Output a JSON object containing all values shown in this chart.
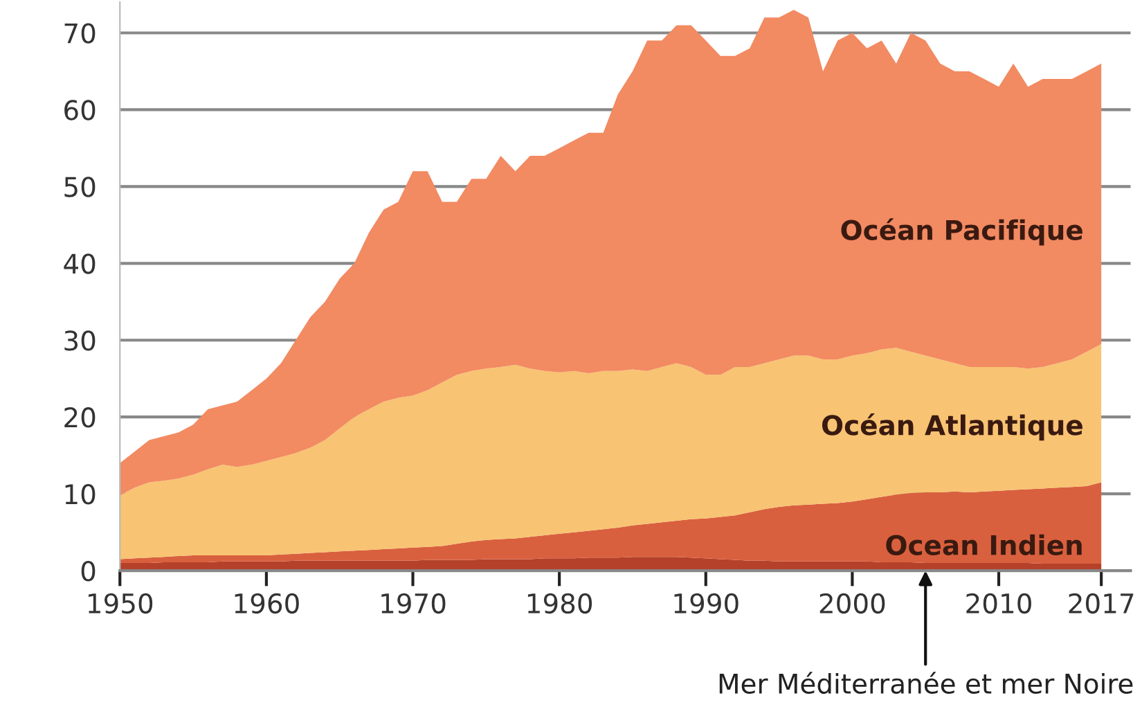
{
  "chart_data": {
    "type": "area",
    "stacked": true,
    "legend": false,
    "grid": "y",
    "x": [
      1950,
      1951,
      1952,
      1953,
      1954,
      1955,
      1956,
      1957,
      1958,
      1959,
      1960,
      1961,
      1962,
      1963,
      1964,
      1965,
      1966,
      1967,
      1968,
      1969,
      1970,
      1971,
      1972,
      1973,
      1974,
      1975,
      1976,
      1977,
      1978,
      1979,
      1980,
      1981,
      1982,
      1983,
      1984,
      1985,
      1986,
      1987,
      1988,
      1989,
      1990,
      1991,
      1992,
      1993,
      1994,
      1995,
      1996,
      1997,
      1998,
      1999,
      2000,
      2001,
      2002,
      2003,
      2004,
      2005,
      2006,
      2007,
      2008,
      2009,
      2010,
      2011,
      2012,
      2013,
      2014,
      2015,
      2016,
      2017
    ],
    "xlim": [
      1950,
      2019
    ],
    "xticks": [
      1950,
      1960,
      1970,
      1980,
      1990,
      2000,
      2010,
      2017
    ],
    "ylim": [
      0,
      74
    ],
    "yticks": [
      0,
      10,
      20,
      30,
      40,
      50,
      60,
      70
    ],
    "series": [
      {
        "name": "Mer Méditerranée et mer Noire",
        "color": "#b5412a",
        "values": [
          1.0,
          1.0,
          1.0,
          1.1,
          1.1,
          1.1,
          1.1,
          1.2,
          1.2,
          1.2,
          1.2,
          1.2,
          1.3,
          1.3,
          1.3,
          1.3,
          1.3,
          1.3,
          1.3,
          1.3,
          1.3,
          1.4,
          1.4,
          1.4,
          1.4,
          1.5,
          1.5,
          1.5,
          1.5,
          1.6,
          1.6,
          1.6,
          1.7,
          1.7,
          1.7,
          1.8,
          1.8,
          1.8,
          1.8,
          1.7,
          1.6,
          1.5,
          1.4,
          1.3,
          1.3,
          1.2,
          1.2,
          1.2,
          1.2,
          1.2,
          1.2,
          1.2,
          1.1,
          1.1,
          1.1,
          1.0,
          1.0,
          1.0,
          1.0,
          1.0,
          1.0,
          1.0,
          1.0,
          0.9,
          0.9,
          0.9,
          0.9,
          0.9
        ]
      },
      {
        "name": "Ocean Indien",
        "color": "#d9603e",
        "values": [
          0.5,
          0.6,
          0.7,
          0.7,
          0.8,
          0.9,
          0.9,
          0.8,
          0.8,
          0.8,
          0.8,
          0.9,
          0.9,
          1.0,
          1.1,
          1.2,
          1.3,
          1.4,
          1.5,
          1.6,
          1.7,
          1.7,
          1.8,
          2.1,
          2.4,
          2.5,
          2.6,
          2.7,
          2.9,
          3.0,
          3.2,
          3.4,
          3.5,
          3.7,
          3.9,
          4.1,
          4.3,
          4.5,
          4.7,
          5.0,
          5.2,
          5.5,
          5.8,
          6.3,
          6.7,
          7.1,
          7.3,
          7.4,
          7.5,
          7.6,
          7.8,
          8.1,
          8.5,
          8.8,
          9.0,
          9.2,
          9.2,
          9.3,
          9.2,
          9.3,
          9.4,
          9.5,
          9.6,
          9.8,
          9.9,
          10.0,
          10.1,
          10.6
        ]
      },
      {
        "name": "Océan Atlantique",
        "color": "#f8c373",
        "values": [
          8.3,
          9.2,
          9.8,
          9.9,
          10.1,
          10.5,
          11.2,
          11.8,
          11.5,
          11.8,
          12.3,
          12.7,
          13.1,
          13.7,
          14.6,
          16.0,
          17.4,
          18.3,
          19.2,
          19.6,
          19.8,
          20.4,
          21.3,
          22.0,
          22.2,
          22.3,
          22.4,
          22.6,
          21.9,
          21.4,
          21.0,
          21.0,
          20.5,
          20.6,
          20.4,
          20.3,
          19.9,
          20.2,
          20.5,
          19.8,
          18.7,
          18.5,
          19.3,
          18.9,
          19.0,
          19.2,
          19.5,
          19.4,
          18.8,
          18.7,
          19.0,
          19.0,
          19.2,
          19.1,
          18.4,
          17.8,
          17.3,
          16.7,
          16.3,
          16.2,
          16.1,
          16.0,
          15.7,
          15.8,
          16.2,
          16.6,
          17.5,
          18.0
        ]
      },
      {
        "name": "Océan Pacifique",
        "color": "#f28a62",
        "values": [
          4.2,
          4.7,
          5.5,
          5.8,
          6.0,
          6.5,
          7.8,
          7.7,
          8.5,
          9.7,
          10.7,
          12.2,
          14.7,
          17.0,
          18.0,
          19.5,
          20.0,
          23.0,
          25.0,
          25.5,
          29.2,
          28.5,
          23.5,
          22.5,
          25.0,
          24.7,
          27.5,
          25.2,
          27.7,
          28.0,
          29.2,
          30.0,
          31.3,
          31.0,
          36.0,
          38.8,
          43.0,
          42.5,
          44.0,
          44.5,
          43.5,
          41.5,
          40.5,
          41.5,
          45.0,
          44.5,
          45.0,
          44.0,
          37.5,
          41.5,
          42.0,
          39.7,
          40.2,
          37.0,
          41.5,
          41.0,
          38.5,
          38.0,
          38.5,
          37.5,
          36.5,
          39.5,
          36.7,
          37.5,
          37.0,
          36.5,
          36.5,
          36.5
        ]
      }
    ]
  }
}
